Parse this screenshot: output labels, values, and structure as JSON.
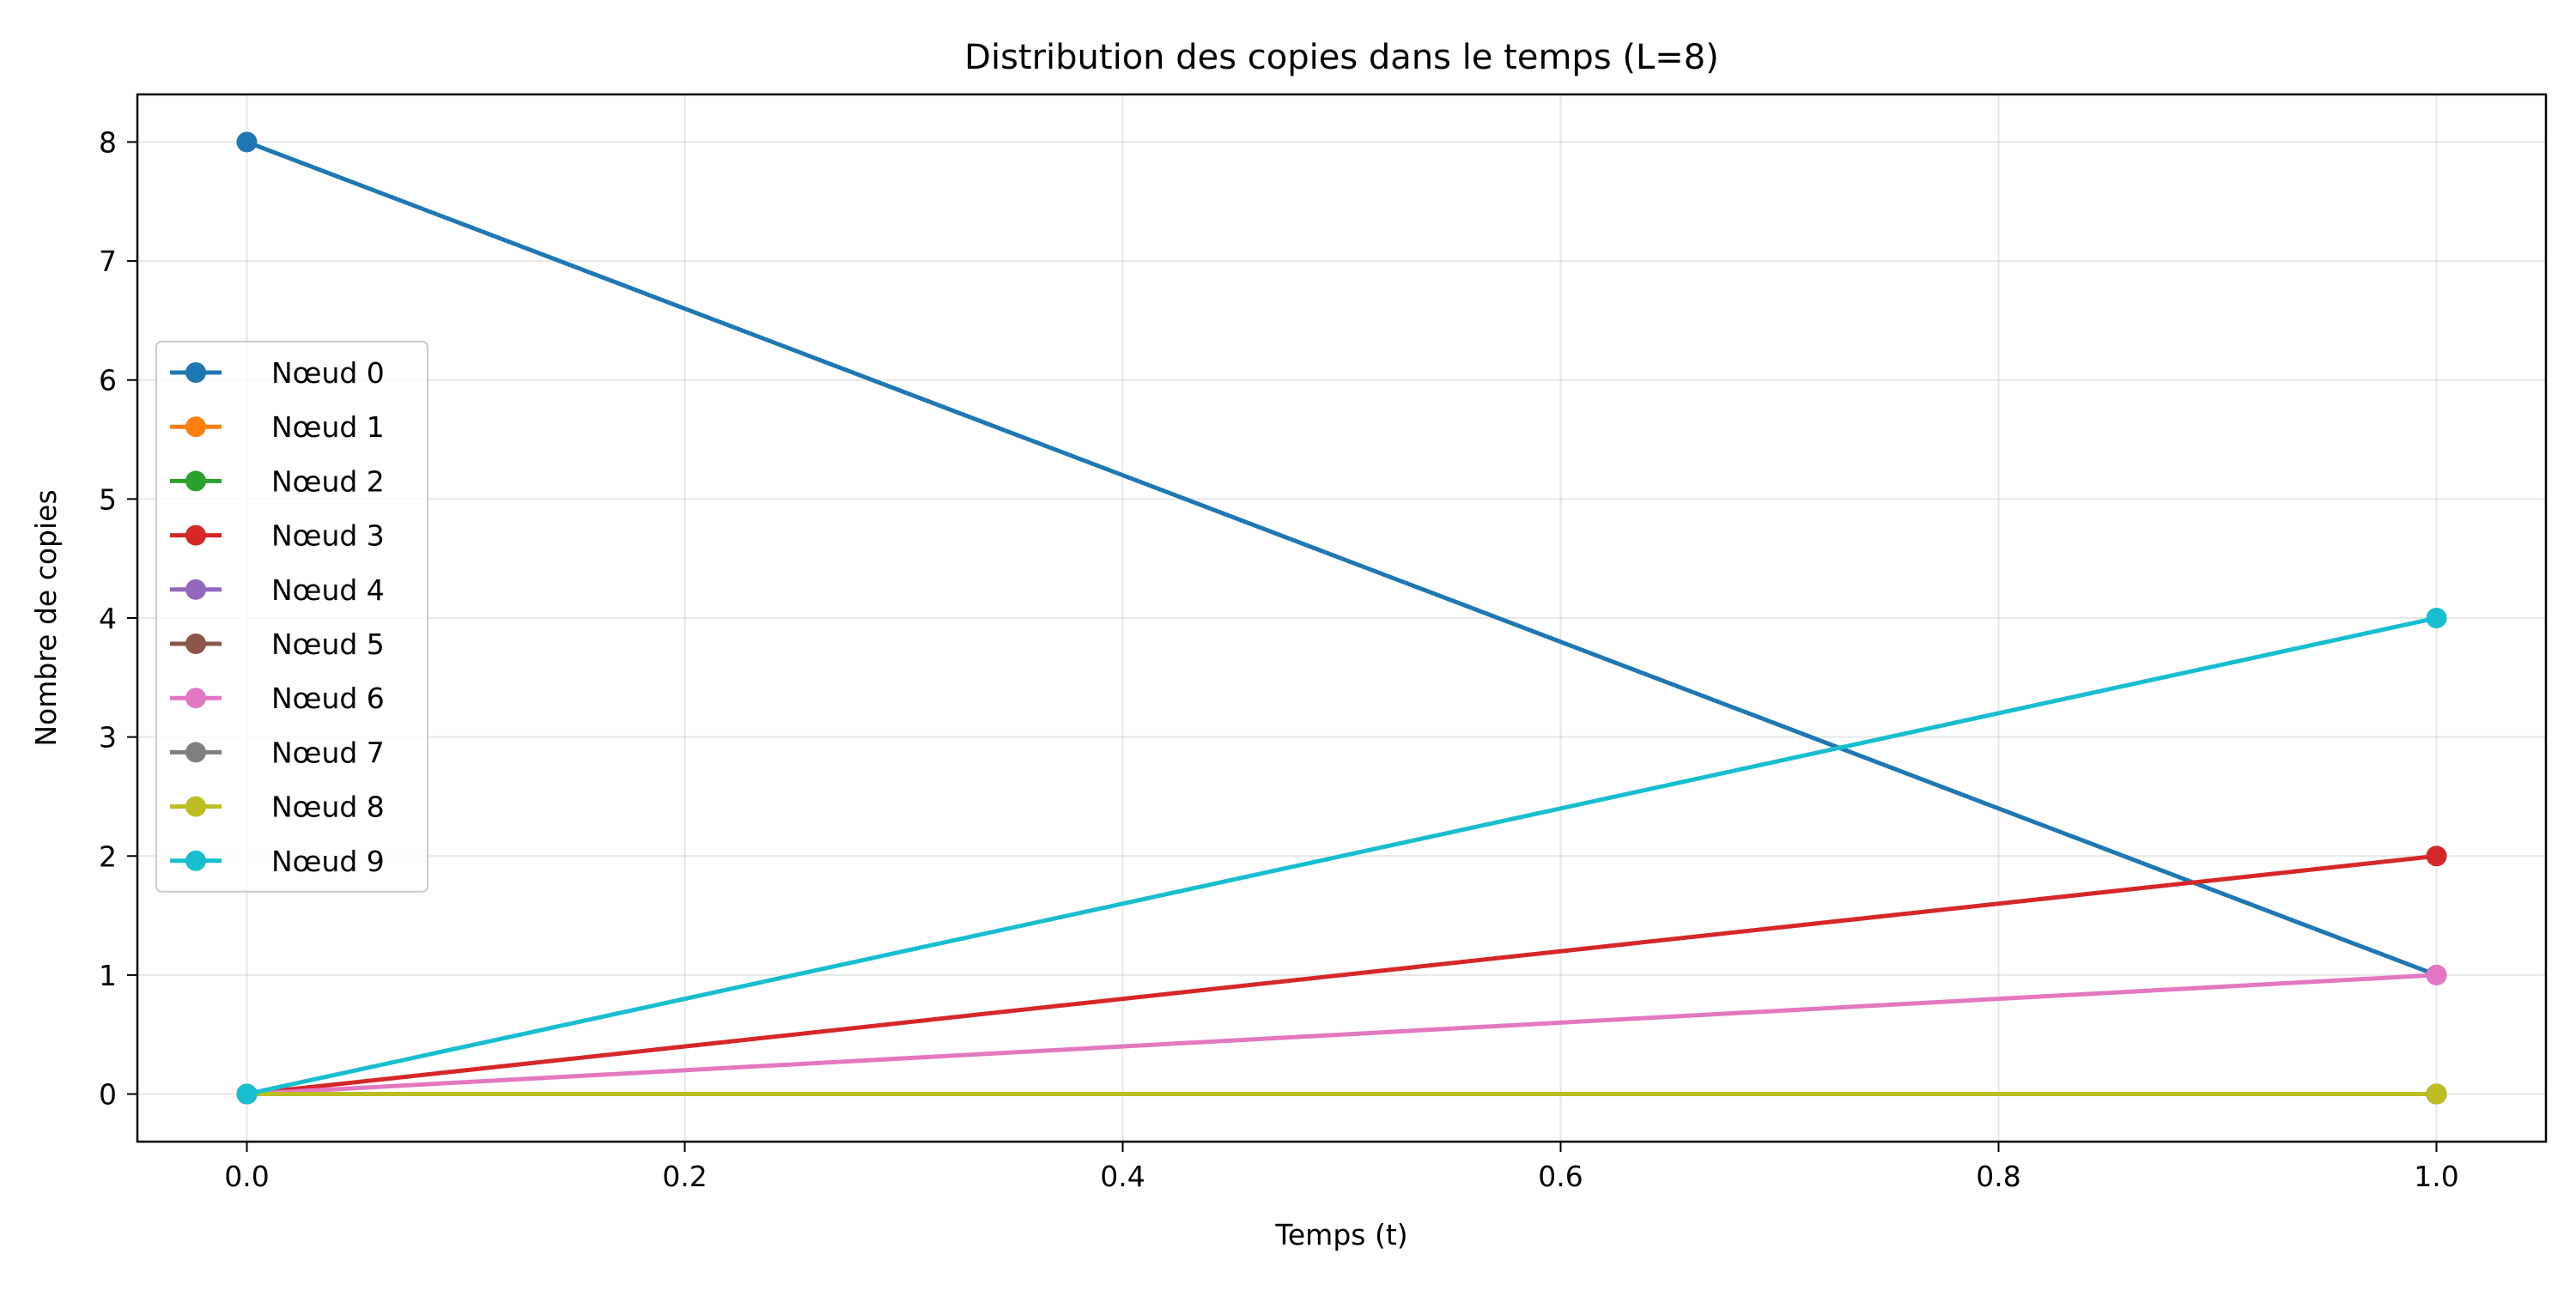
{
  "chart_data": {
    "type": "line",
    "title": "Distribution des copies dans le temps (L=8)",
    "xlabel": "Temps (t)",
    "ylabel": "Nombre de copies",
    "xlim": [
      -0.05,
      1.05
    ],
    "ylim": [
      -0.4,
      8.4
    ],
    "x_ticks": [
      0.0,
      0.2,
      0.4,
      0.6,
      0.8,
      1.0
    ],
    "x_tick_labels": [
      "0.0",
      "0.2",
      "0.4",
      "0.6",
      "0.8",
      "1.0"
    ],
    "y_ticks": [
      0,
      1,
      2,
      3,
      4,
      5,
      6,
      7,
      8
    ],
    "y_tick_labels": [
      "0",
      "1",
      "2",
      "3",
      "4",
      "5",
      "6",
      "7",
      "8"
    ],
    "grid": true,
    "legend_position": "center-left",
    "x": [
      0.0,
      1.0
    ],
    "series": [
      {
        "name": "Nœud 0",
        "color": "#1f77b4",
        "values": [
          8,
          1
        ]
      },
      {
        "name": "Nœud 1",
        "color": "#ff7f0e",
        "values": [
          0,
          0
        ]
      },
      {
        "name": "Nœud 2",
        "color": "#2ca02c",
        "values": [
          0,
          0
        ]
      },
      {
        "name": "Nœud 3",
        "color": "#d62728",
        "values": [
          0,
          2
        ]
      },
      {
        "name": "Nœud 4",
        "color": "#9467bd",
        "values": [
          0,
          0
        ]
      },
      {
        "name": "Nœud 5",
        "color": "#8c564b",
        "values": [
          0,
          0
        ]
      },
      {
        "name": "Nœud 6",
        "color": "#e377c2",
        "values": [
          0,
          1
        ]
      },
      {
        "name": "Nœud 7",
        "color": "#7f7f7f",
        "values": [
          0,
          0
        ]
      },
      {
        "name": "Nœud 8",
        "color": "#bcbd22",
        "values": [
          0,
          0
        ]
      },
      {
        "name": "Nœud 9",
        "color": "#17becf",
        "values": [
          0,
          4
        ]
      }
    ]
  }
}
